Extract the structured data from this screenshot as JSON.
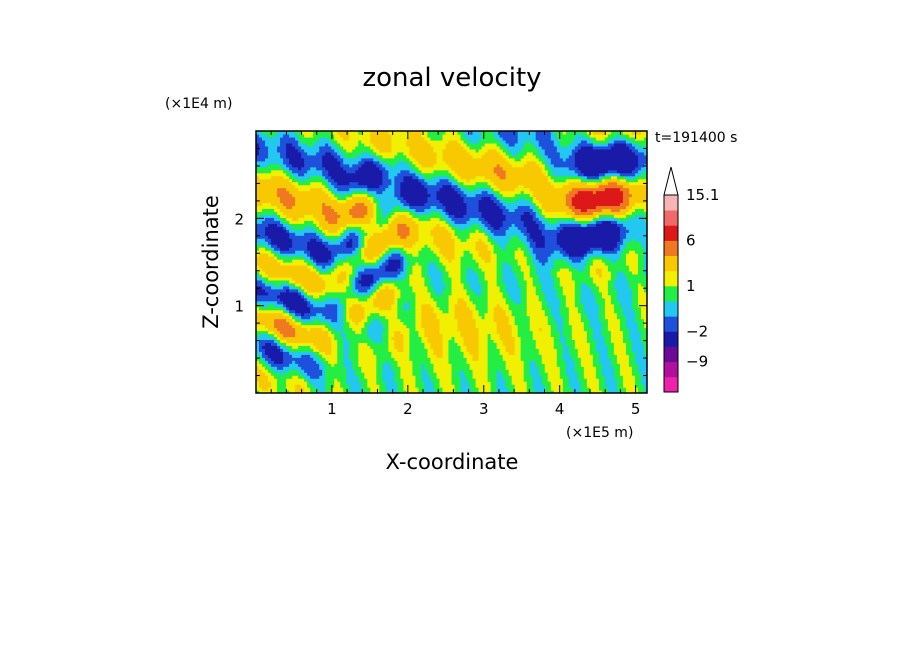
{
  "chart_data": {
    "type": "heatmap",
    "title": "zonal velocity",
    "xlabel": "X-coordinate",
    "ylabel": "Z-coordinate",
    "x_unit": "(×1E5 m)",
    "y_unit": "(×1E4 m)",
    "time_label": "t=191400 s",
    "xlim": [
      0,
      5.15
    ],
    "ylim": [
      0,
      3.0
    ],
    "x_ticks": [
      1,
      2,
      3,
      4,
      5
    ],
    "y_ticks": [
      1,
      2
    ],
    "x_tick_labels": [
      "1",
      "2",
      "3",
      "4",
      "5"
    ],
    "y_tick_labels": [
      "1",
      "2"
    ],
    "colorbar": {
      "levels": [
        -15,
        -12,
        -9,
        -6,
        -2,
        -1,
        0,
        1,
        2,
        4,
        6,
        9,
        12,
        15.1
      ],
      "colors": [
        "#ee22aa",
        "#b0109e",
        "#6a0a96",
        "#1a1aa8",
        "#1e50dc",
        "#22c8f0",
        "#22ee44",
        "#f0f000",
        "#f8c800",
        "#f07820",
        "#dc1818",
        "#f06a6a",
        "#f8b4b4"
      ],
      "tick_labels": [
        "15.1",
        "6",
        "1",
        "−2",
        "−9"
      ],
      "tick_values": [
        15.1,
        6,
        1,
        -2,
        -9
      ],
      "extend": "max"
    },
    "field_description_values": {
      "bands": [
        {
          "x0": 0.0,
          "x1": 5.15,
          "z": 0.25,
          "u": 0
        },
        {
          "x0": 1.5,
          "x1": 4.2,
          "z": 0.85,
          "u": 1
        },
        {
          "x0": 0.0,
          "x1": 5.15,
          "z": 1.3,
          "u": 0
        },
        {
          "x0": 0.0,
          "x1": 2.5,
          "z": 2.0,
          "u": 1
        },
        {
          "x0": 0.0,
          "x1": 5.15,
          "z": 2.6,
          "u": 4
        }
      ]
    }
  }
}
